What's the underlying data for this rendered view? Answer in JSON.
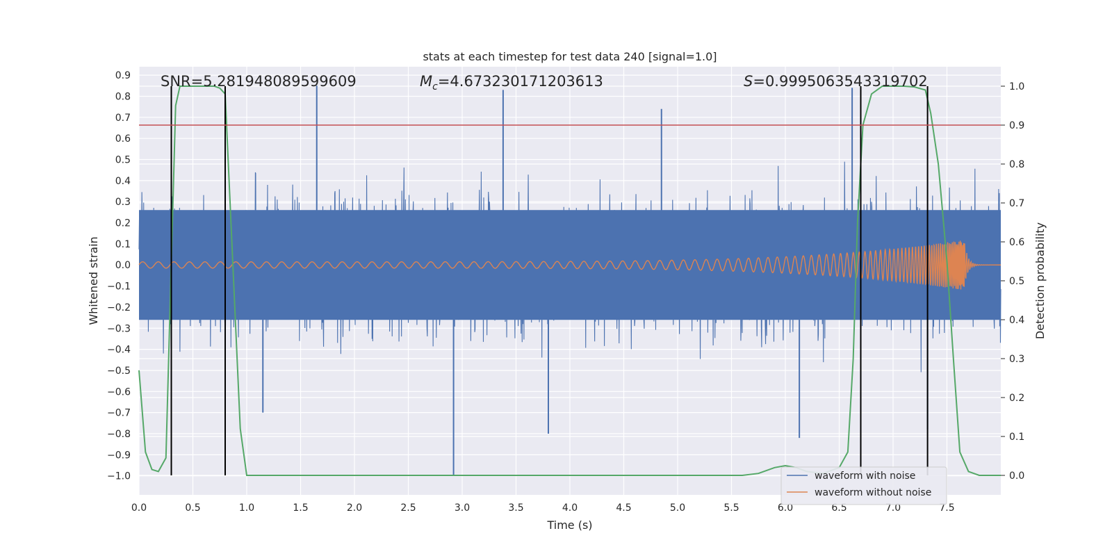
{
  "chart_data": {
    "type": "line",
    "title": "stats at each timestep for test data 240 [signal=1.0]",
    "xlabel": "Time (s)",
    "ylabel_left": "Whitened strain",
    "ylabel_right": "Detection probability",
    "xlim": [
      0.0,
      8.0
    ],
    "ylim_left": [
      -1.09,
      0.94
    ],
    "ylim_right": [
      -0.05,
      1.05
    ],
    "x_ticks": [
      "0.0",
      "0.5",
      "1.0",
      "1.5",
      "2.0",
      "2.5",
      "3.0",
      "3.5",
      "4.0",
      "4.5",
      "5.0",
      "5.5",
      "6.0",
      "6.5",
      "7.0",
      "7.5"
    ],
    "y_left_ticks": [
      "0.9",
      "0.8",
      "0.7",
      "0.6",
      "0.5",
      "0.4",
      "0.3",
      "0.2",
      "0.1",
      "0.0",
      "−0.1",
      "−0.2",
      "−0.3",
      "−0.4",
      "−0.5",
      "−0.6",
      "−0.7",
      "−0.8",
      "−0.9",
      "−1.0"
    ],
    "y_right_ticks": [
      "1.0",
      "0.9",
      "0.8",
      "0.7",
      "0.6",
      "0.5",
      "0.4",
      "0.3",
      "0.2",
      "0.1",
      "0.0"
    ],
    "grid": true,
    "legend_position": "lower-right",
    "annotations": {
      "snr": "SNR=5.281948089599609",
      "mc_symbol": "M",
      "mc_subscript": "c",
      "mc_value": "=4.673230171203613",
      "s_symbol": "S",
      "s_value": "=0.9995063543319702"
    },
    "threshold_line": {
      "axis": "right",
      "value": 0.9,
      "color": "#c44e52"
    },
    "vertical_markers": [
      0.3,
      0.8,
      6.7,
      7.32
    ],
    "series": [
      {
        "name": "waveform with noise",
        "axis": "left",
        "color": "#4c72b0",
        "description_of_shape": "dense noise",
        "envelope_typical": [
          -0.42,
          0.42
        ],
        "peak_spikes": [
          {
            "x": 1.65,
            "y": 0.85
          },
          {
            "x": 3.38,
            "y": 0.83
          },
          {
            "x": 6.62,
            "y": 0.84
          },
          {
            "x": 2.92,
            "y": -1.0
          },
          {
            "x": 7.32,
            "y": -0.78
          },
          {
            "x": 6.13,
            "y": -0.82
          },
          {
            "x": 3.8,
            "y": -0.8
          },
          {
            "x": 1.15,
            "y": -0.7
          },
          {
            "x": 4.85,
            "y": 0.74
          }
        ]
      },
      {
        "name": "waveform without noise",
        "axis": "left",
        "color": "#dd8452",
        "chirp": {
          "start_amplitude": 0.015,
          "merger_time": 7.66,
          "merger_amplitude": 0.12
        }
      },
      {
        "name": "detection probability",
        "axis": "right",
        "color": "#55a868",
        "x": [
          0.0,
          0.06,
          0.12,
          0.18,
          0.25,
          0.3,
          0.34,
          0.38,
          0.5,
          0.6,
          0.7,
          0.75,
          0.8,
          0.87,
          0.94,
          1.0,
          1.1,
          5.6,
          5.75,
          5.9,
          6.0,
          6.1,
          6.2,
          6.35,
          6.5,
          6.58,
          6.63,
          6.67,
          6.72,
          6.8,
          6.9,
          7.0,
          7.1,
          7.2,
          7.3,
          7.35,
          7.42,
          7.5,
          7.56,
          7.62,
          7.7,
          7.8,
          8.0
        ],
        "y": [
          0.27,
          0.06,
          0.015,
          0.01,
          0.045,
          0.55,
          0.95,
          1.0,
          1.0,
          1.0,
          1.0,
          0.995,
          0.98,
          0.55,
          0.12,
          0.0,
          0.0,
          0.0,
          0.005,
          0.02,
          0.025,
          0.02,
          0.01,
          0.005,
          0.02,
          0.06,
          0.3,
          0.65,
          0.9,
          0.98,
          1.0,
          1.0,
          1.0,
          0.998,
          0.99,
          0.93,
          0.8,
          0.55,
          0.3,
          0.06,
          0.01,
          0.0,
          0.0
        ]
      }
    ]
  }
}
